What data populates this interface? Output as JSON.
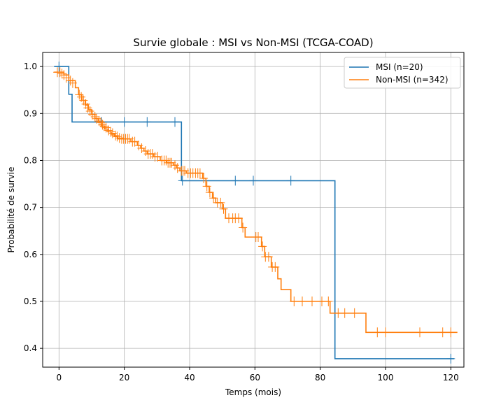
{
  "chart_data": {
    "type": "line",
    "title": "Survie globale : MSI vs Non-MSI (TCGA-COAD)",
    "xlabel": "Temps (mois)",
    "ylabel": "Probabilité de survie",
    "xlim": [
      -5,
      124
    ],
    "ylim": [
      0.36,
      1.03
    ],
    "xticks": [
      0,
      20,
      40,
      60,
      80,
      100,
      120
    ],
    "yticks": [
      0.4,
      0.5,
      0.6,
      0.7,
      0.8,
      0.9,
      1.0
    ],
    "xtick_labels": [
      "0",
      "20",
      "40",
      "60",
      "80",
      "100",
      "120"
    ],
    "ytick_labels": [
      "0.4",
      "0.5",
      "0.6",
      "0.7",
      "0.8",
      "0.9",
      "1.0"
    ],
    "grid": true,
    "legend_position": "top-right",
    "series": [
      {
        "name": "MSI (n=20)",
        "color": "#1f77b4",
        "steps": [
          [
            -1.5,
            1.0
          ],
          [
            3,
            0.941
          ],
          [
            4,
            0.882
          ],
          [
            37.5,
            0.757
          ],
          [
            84.5,
            0.378
          ],
          [
            121,
            0.378
          ]
        ],
        "censors": [
          [
            0,
            1.0
          ],
          [
            13,
            0.882
          ],
          [
            20,
            0.882
          ],
          [
            27,
            0.882
          ],
          [
            35.5,
            0.882
          ],
          [
            37.8,
            0.757
          ],
          [
            54,
            0.757
          ],
          [
            59.5,
            0.757
          ],
          [
            71,
            0.757
          ],
          [
            120,
            0.378
          ]
        ]
      },
      {
        "name": "Non-MSI (n=342)",
        "color": "#ff7f0e",
        "steps": [
          [
            -1.5,
            0.988
          ],
          [
            1.5,
            0.982
          ],
          [
            3,
            0.97
          ],
          [
            5,
            0.955
          ],
          [
            6,
            0.94
          ],
          [
            7,
            0.928
          ],
          [
            8,
            0.918
          ],
          [
            9,
            0.908
          ],
          [
            10,
            0.898
          ],
          [
            11,
            0.889
          ],
          [
            12,
            0.881
          ],
          [
            13,
            0.873
          ],
          [
            14,
            0.867
          ],
          [
            15,
            0.861
          ],
          [
            16,
            0.856
          ],
          [
            17,
            0.851
          ],
          [
            18,
            0.846
          ],
          [
            22,
            0.84
          ],
          [
            24,
            0.832
          ],
          [
            25,
            0.826
          ],
          [
            26,
            0.82
          ],
          [
            27,
            0.814
          ],
          [
            29,
            0.808
          ],
          [
            31,
            0.8
          ],
          [
            33,
            0.795
          ],
          [
            35,
            0.79
          ],
          [
            36,
            0.784
          ],
          [
            37,
            0.778
          ],
          [
            39,
            0.773
          ],
          [
            44,
            0.762
          ],
          [
            45,
            0.745
          ],
          [
            46,
            0.732
          ],
          [
            47,
            0.72
          ],
          [
            48,
            0.71
          ],
          [
            50,
            0.697
          ],
          [
            51,
            0.677
          ],
          [
            56,
            0.657
          ],
          [
            57,
            0.637
          ],
          [
            62,
            0.617
          ],
          [
            63,
            0.595
          ],
          [
            65,
            0.573
          ],
          [
            67,
            0.548
          ],
          [
            68,
            0.525
          ],
          [
            71,
            0.5
          ],
          [
            83,
            0.475
          ],
          [
            94,
            0.434
          ],
          [
            122,
            0.434
          ]
        ],
        "censors": [
          [
            -0.5,
            0.988
          ],
          [
            0.3,
            0.988
          ],
          [
            0.9,
            0.985
          ],
          [
            1.5,
            0.982
          ],
          [
            2.2,
            0.976
          ],
          [
            3.5,
            0.97
          ],
          [
            4.2,
            0.965
          ],
          [
            6.2,
            0.94
          ],
          [
            6.8,
            0.935
          ],
          [
            7.5,
            0.928
          ],
          [
            8.2,
            0.92
          ],
          [
            8.8,
            0.912
          ],
          [
            9.5,
            0.905
          ],
          [
            10.2,
            0.898
          ],
          [
            11,
            0.893
          ],
          [
            11.5,
            0.889
          ],
          [
            12.3,
            0.884
          ],
          [
            12.8,
            0.881
          ],
          [
            13.3,
            0.876
          ],
          [
            13.8,
            0.873
          ],
          [
            14.4,
            0.87
          ],
          [
            15.2,
            0.864
          ],
          [
            15.8,
            0.861
          ],
          [
            16.4,
            0.858
          ],
          [
            17.3,
            0.853
          ],
          [
            17.8,
            0.851
          ],
          [
            18.5,
            0.848
          ],
          [
            19.2,
            0.846
          ],
          [
            19.8,
            0.846
          ],
          [
            20.4,
            0.846
          ],
          [
            21,
            0.846
          ],
          [
            21.5,
            0.846
          ],
          [
            22.5,
            0.84
          ],
          [
            23.2,
            0.84
          ],
          [
            24.4,
            0.832
          ],
          [
            25.3,
            0.826
          ],
          [
            26.5,
            0.82
          ],
          [
            27.3,
            0.814
          ],
          [
            28,
            0.814
          ],
          [
            28.6,
            0.814
          ],
          [
            29.4,
            0.808
          ],
          [
            30.2,
            0.808
          ],
          [
            31.5,
            0.8
          ],
          [
            32.2,
            0.8
          ],
          [
            32.8,
            0.8
          ],
          [
            33.4,
            0.795
          ],
          [
            34,
            0.795
          ],
          [
            34.5,
            0.795
          ],
          [
            35.5,
            0.79
          ],
          [
            36.3,
            0.784
          ],
          [
            37.5,
            0.778
          ],
          [
            38,
            0.778
          ],
          [
            38.5,
            0.778
          ],
          [
            39.5,
            0.773
          ],
          [
            40.3,
            0.773
          ],
          [
            41,
            0.773
          ],
          [
            41.8,
            0.773
          ],
          [
            42.5,
            0.773
          ],
          [
            43.2,
            0.773
          ],
          [
            44.3,
            0.762
          ],
          [
            45.3,
            0.745
          ],
          [
            46.2,
            0.732
          ],
          [
            47.3,
            0.72
          ],
          [
            48.5,
            0.71
          ],
          [
            49.5,
            0.71
          ],
          [
            50.4,
            0.697
          ],
          [
            52,
            0.677
          ],
          [
            53.2,
            0.677
          ],
          [
            54,
            0.677
          ],
          [
            55,
            0.677
          ],
          [
            56.3,
            0.657
          ],
          [
            60.3,
            0.637
          ],
          [
            61,
            0.637
          ],
          [
            62.3,
            0.617
          ],
          [
            63.2,
            0.595
          ],
          [
            64.2,
            0.595
          ],
          [
            65.3,
            0.573
          ],
          [
            66.2,
            0.573
          ],
          [
            72,
            0.5
          ],
          [
            74.5,
            0.5
          ],
          [
            77.5,
            0.5
          ],
          [
            80.5,
            0.5
          ],
          [
            82.5,
            0.5
          ],
          [
            85.5,
            0.475
          ],
          [
            87.5,
            0.475
          ],
          [
            90.5,
            0.475
          ],
          [
            97.5,
            0.434
          ],
          [
            100,
            0.434
          ],
          [
            110.5,
            0.434
          ],
          [
            117.5,
            0.434
          ],
          [
            120,
            0.434
          ]
        ]
      }
    ]
  }
}
